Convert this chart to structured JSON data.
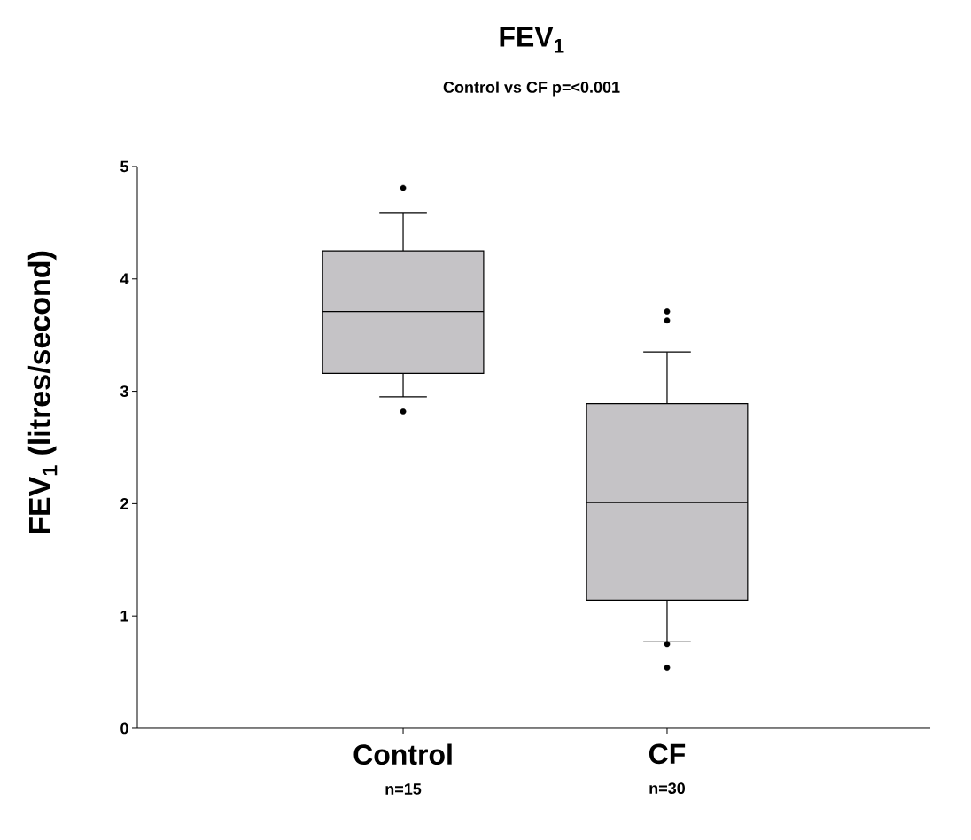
{
  "chart_data": {
    "type": "box",
    "title": "FEV$_{1}$",
    "subtitle": "Control vs CF p=<0.001",
    "ylabel": "FEV$_{1}$ (litres/second)",
    "categories": [
      "Control",
      "CF"
    ],
    "annotations": [
      "n=15",
      "n=30"
    ],
    "color": "#c5c3c6",
    "boxes": [
      {
        "low": 2.95,
        "q1": 3.16,
        "median": 3.71,
        "q3": 4.25,
        "high": 4.59,
        "outliers": [
          4.81,
          2.82
        ]
      },
      {
        "low": 0.77,
        "q1": 1.14,
        "median": 2.01,
        "q3": 2.89,
        "high": 3.35,
        "outliers": [
          3.71,
          3.63,
          0.75,
          0.54
        ]
      }
    ],
    "ylim": [
      0,
      5
    ],
    "yticks": [
      0,
      1,
      2,
      3,
      4,
      5
    ],
    "grid": false,
    "marker": "circle"
  }
}
